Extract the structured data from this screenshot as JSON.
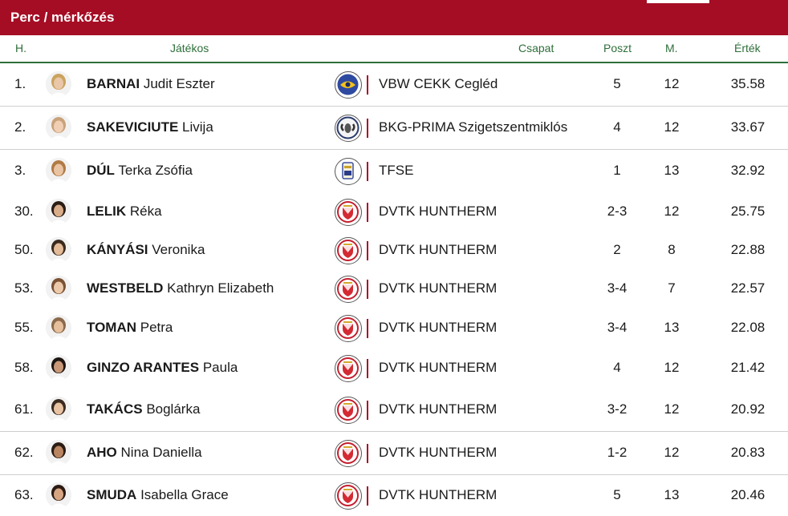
{
  "panel": {
    "title": "Perc / mérkőzés"
  },
  "columns": {
    "rank": "H.",
    "player": "Játékos",
    "team": "Csapat",
    "position": "Poszt",
    "matches": "M.",
    "value": "Érték"
  },
  "colors": {
    "accent": "#a50d24",
    "header_text": "#2e6f3a"
  },
  "rows": [
    {
      "rank": "1.",
      "last": "BARNAI",
      "first": "Judit Eszter",
      "team": "VBW CEKK Cegléd",
      "team_logo": "cekk-logo",
      "pos": "5",
      "m": "12",
      "val": "35.58"
    },
    {
      "rank": "2.",
      "last": "SAKEVICIUTE",
      "first": "Livija",
      "team": "BKG-PRIMA Szigetszentmiklós",
      "team_logo": "bkg-logo",
      "pos": "4",
      "m": "12",
      "val": "33.67"
    },
    {
      "rank": "3.",
      "last": "DÚL",
      "first": "Terka Zsófia",
      "team": "TFSE",
      "team_logo": "tfse-logo",
      "pos": "1",
      "m": "13",
      "val": "32.92"
    },
    {
      "rank": "30.",
      "last": "LELIK",
      "first": "Réka",
      "team": "DVTK HUNTHERM",
      "team_logo": "dvtk-logo",
      "pos": "2-3",
      "m": "12",
      "val": "25.75"
    },
    {
      "rank": "50.",
      "last": "KÁNYÁSI",
      "first": "Veronika",
      "team": "DVTK HUNTHERM",
      "team_logo": "dvtk-logo",
      "pos": "2",
      "m": "8",
      "val": "22.88"
    },
    {
      "rank": "53.",
      "last": "WESTBELD",
      "first": "Kathryn Elizabeth",
      "team": "DVTK HUNTHERM",
      "team_logo": "dvtk-logo",
      "pos": "3-4",
      "m": "7",
      "val": "22.57"
    },
    {
      "rank": "55.",
      "last": "TOMAN",
      "first": "Petra",
      "team": "DVTK HUNTHERM",
      "team_logo": "dvtk-logo",
      "pos": "3-4",
      "m": "13",
      "val": "22.08"
    },
    {
      "rank": "58.",
      "last": "GINZO ARANTES",
      "first": "Paula",
      "team": "DVTK HUNTHERM",
      "team_logo": "dvtk-logo",
      "pos": "4",
      "m": "12",
      "val": "21.42"
    },
    {
      "rank": "61.",
      "last": "TAKÁCS",
      "first": "Boglárka",
      "team": "DVTK HUNTHERM",
      "team_logo": "dvtk-logo",
      "pos": "3-2",
      "m": "12",
      "val": "20.92"
    },
    {
      "rank": "62.",
      "last": "AHO",
      "first": "Nina Daniella",
      "team": "DVTK HUNTHERM",
      "team_logo": "dvtk-logo",
      "pos": "1-2",
      "m": "12",
      "val": "20.83"
    },
    {
      "rank": "63.",
      "last": "SMUDA",
      "first": "Isabella Grace",
      "team": "DVTK HUNTHERM",
      "team_logo": "dvtk-logo",
      "pos": "5",
      "m": "13",
      "val": "20.46"
    }
  ]
}
